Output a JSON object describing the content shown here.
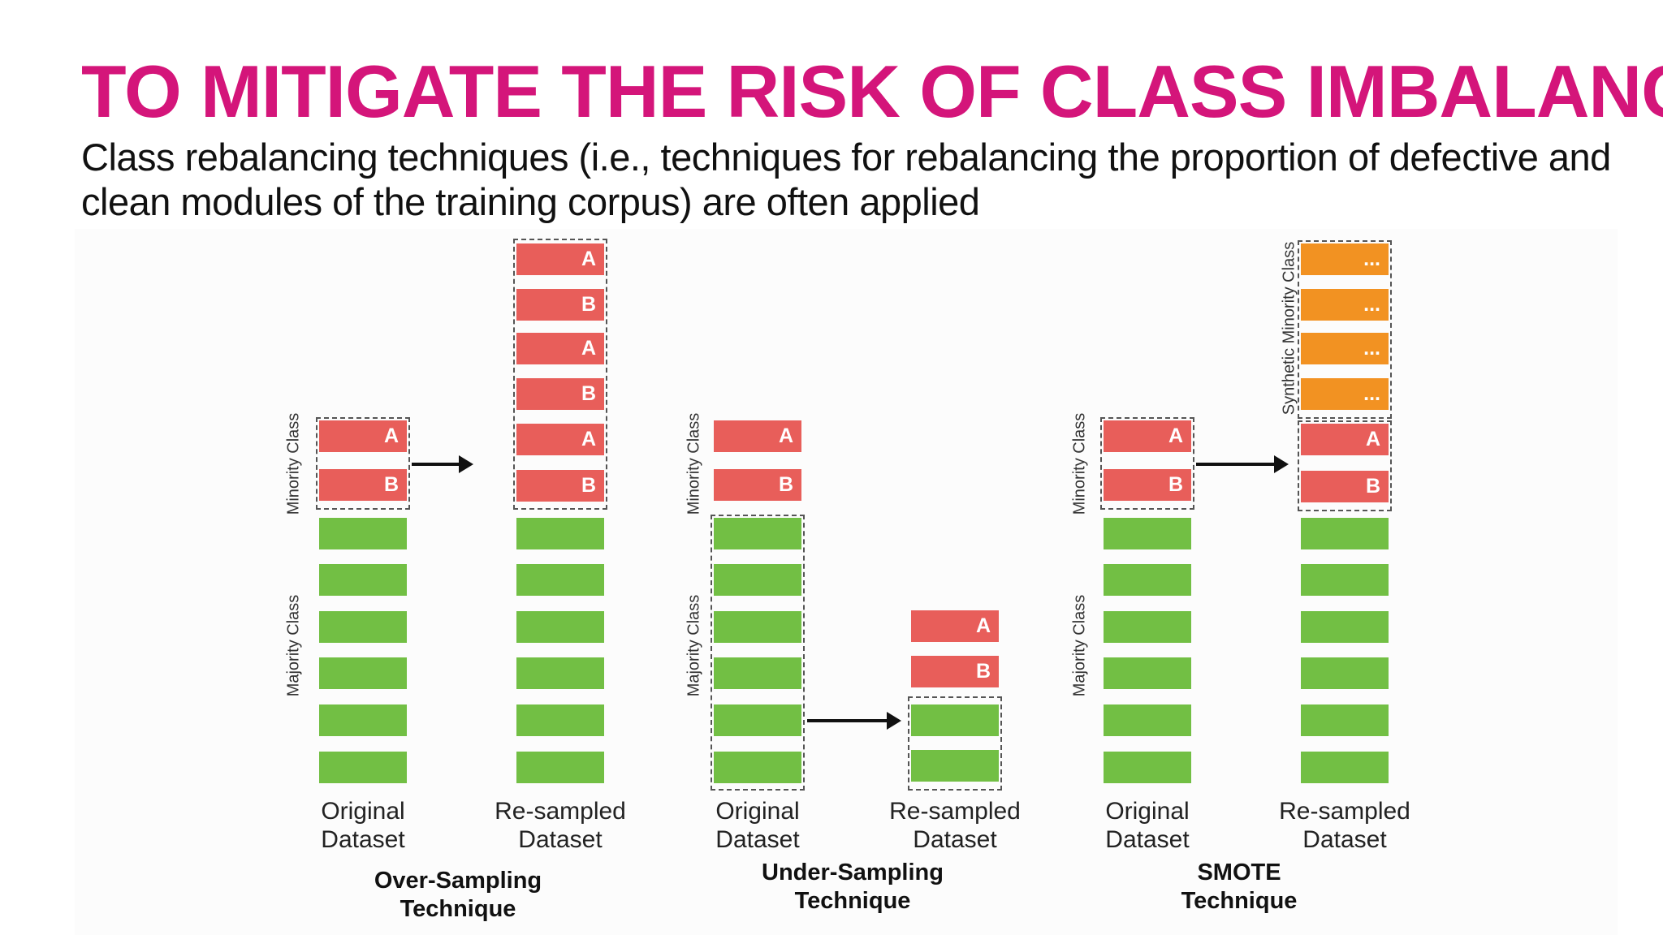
{
  "title": "TO MITIGATE THE RISK OF CLASS IMBALANCE",
  "subtitle": "Class rebalancing techniques (i.e., techniques for rebalancing the proportion of defective and clean modules of the training corpus) are often applied",
  "labels": {
    "minority": "Minority Class",
    "majority": "Majority Class",
    "synthetic": "Synthetic Minority Class"
  },
  "bars": {
    "A": "A",
    "B": "B",
    "dots": "..."
  },
  "captions": {
    "original_line1": "Original",
    "original_line2": "Dataset",
    "resampled_line1": "Re-sampled",
    "resampled_line2": "Dataset"
  },
  "techniques": {
    "over_line1": "Over-Sampling",
    "over_line2": "Technique",
    "under_line1": "Under-Sampling",
    "under_line2": "Technique",
    "smote_line1": "SMOTE",
    "smote_line2": "Technique"
  },
  "colors": {
    "title": "#d4157a",
    "minority": "#e85e5a",
    "majority": "#72bf44",
    "synthetic": "#f29222"
  }
}
